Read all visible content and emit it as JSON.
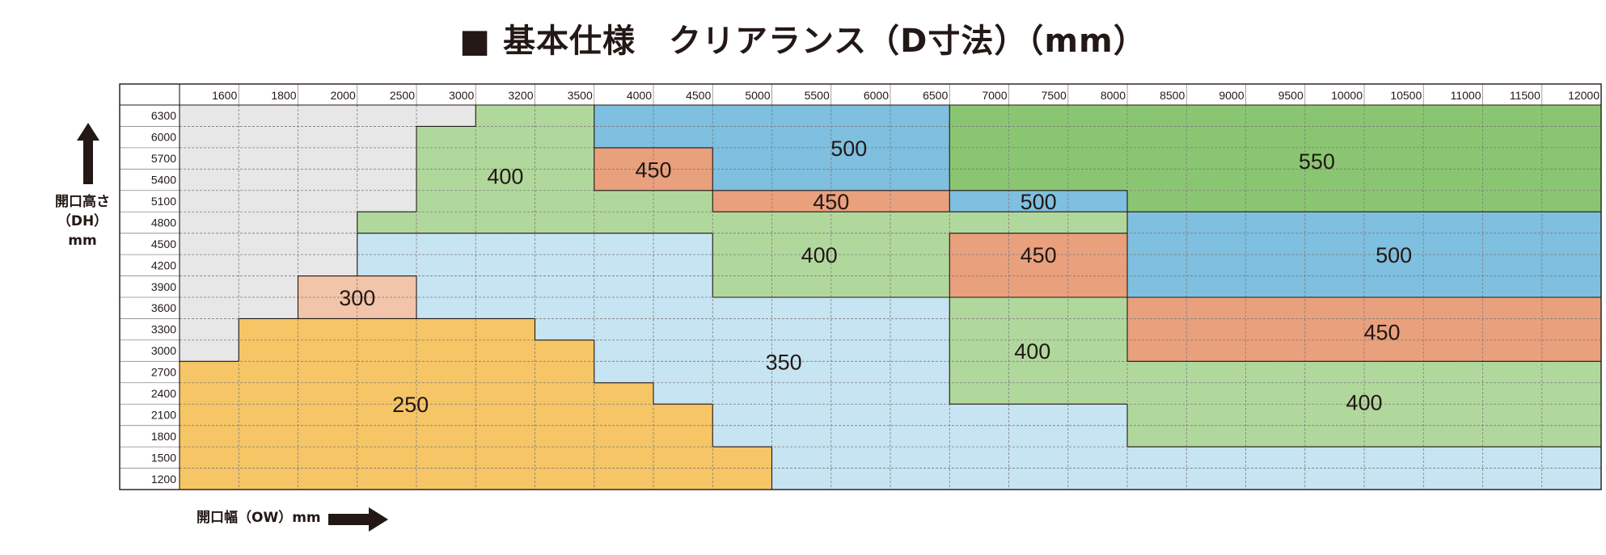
{
  "title": "■ 基本仕様　クリアランス（D寸法）（mm）",
  "y_axis_label": {
    "line1": "開口高さ",
    "line2": "（DH）mm"
  },
  "x_axis_label": "開口幅（OW）mm",
  "chart_data": {
    "type": "heatmap",
    "title": "■ 基本仕様　クリアランス（D寸法）（mm）",
    "xlabel": "開口幅（OW）mm",
    "ylabel": "開口高さ（DH）mm",
    "x_ticks": [
      "1600",
      "1800",
      "2000",
      "2500",
      "3000",
      "3200",
      "3500",
      "4000",
      "4500",
      "5000",
      "5500",
      "6000",
      "6500",
      "7000",
      "7500",
      "8000",
      "8500",
      "9000",
      "9500",
      "10000",
      "10500",
      "11000",
      "11500",
      "12000"
    ],
    "y_ticks": [
      "6300",
      "6000",
      "5700",
      "5400",
      "5100",
      "4800",
      "4500",
      "4200",
      "3900",
      "3600",
      "3300",
      "3000",
      "2700",
      "2400",
      "2100",
      "1800",
      "1500",
      "1200"
    ],
    "grid": true,
    "colors": {
      "none": "#e7e7e7",
      "250": "#f6c565",
      "300": "#f2c4aa",
      "350": "#c7e4f2",
      "400": "#b1d89c",
      "450": "#e9a07d",
      "500": "#7fbfdf",
      "550": "#8ac672"
    },
    "cells": [
      [
        null,
        null,
        null,
        null,
        null,
        "400",
        "400",
        "500",
        "500",
        "500",
        "500",
        "500",
        "500",
        "550",
        "550",
        "550",
        "550",
        "550",
        "550",
        "550",
        "550",
        "550",
        "550",
        "550"
      ],
      [
        null,
        null,
        null,
        null,
        "400",
        "400",
        "400",
        "500",
        "500",
        "500",
        "500",
        "500",
        "500",
        "550",
        "550",
        "550",
        "550",
        "550",
        "550",
        "550",
        "550",
        "550",
        "550",
        "550"
      ],
      [
        null,
        null,
        null,
        null,
        "400",
        "400",
        "400",
        "450",
        "450",
        "500",
        "500",
        "500",
        "500",
        "550",
        "550",
        "550",
        "550",
        "550",
        "550",
        "550",
        "550",
        "550",
        "550",
        "550"
      ],
      [
        null,
        null,
        null,
        null,
        "400",
        "400",
        "400",
        "450",
        "450",
        "500",
        "500",
        "500",
        "500",
        "550",
        "550",
        "550",
        "550",
        "550",
        "550",
        "550",
        "550",
        "550",
        "550",
        "550"
      ],
      [
        null,
        null,
        null,
        null,
        "400",
        "400",
        "400",
        "400",
        "400",
        "450",
        "450",
        "450",
        "450",
        "500",
        "500",
        "500",
        "550",
        "550",
        "550",
        "550",
        "550",
        "550",
        "550",
        "550"
      ],
      [
        null,
        null,
        null,
        "400",
        "400",
        "400",
        "400",
        "400",
        "400",
        "400",
        "400",
        "400",
        "400",
        "400",
        "400",
        "400",
        "500",
        "500",
        "500",
        "500",
        "500",
        "500",
        "500",
        "500"
      ],
      [
        null,
        null,
        null,
        "350",
        "350",
        "350",
        "350",
        "350",
        "350",
        "400",
        "400",
        "400",
        "400",
        "450",
        "450",
        "450",
        "500",
        "500",
        "500",
        "500",
        "500",
        "500",
        "500",
        "500"
      ],
      [
        null,
        null,
        null,
        "350",
        "350",
        "350",
        "350",
        "350",
        "350",
        "400",
        "400",
        "400",
        "400",
        "450",
        "450",
        "450",
        "500",
        "500",
        "500",
        "500",
        "500",
        "500",
        "500",
        "500"
      ],
      [
        null,
        null,
        "300",
        "300",
        "350",
        "350",
        "350",
        "350",
        "350",
        "400",
        "400",
        "400",
        "400",
        "450",
        "450",
        "450",
        "500",
        "500",
        "500",
        "500",
        "500",
        "500",
        "500",
        "500"
      ],
      [
        null,
        null,
        "300",
        "300",
        "350",
        "350",
        "350",
        "350",
        "350",
        "350",
        "350",
        "350",
        "350",
        "400",
        "400",
        "400",
        "450",
        "450",
        "450",
        "450",
        "450",
        "450",
        "450",
        "450"
      ],
      [
        null,
        "250",
        "250",
        "250",
        "250",
        "250",
        "350",
        "350",
        "350",
        "350",
        "350",
        "350",
        "350",
        "400",
        "400",
        "400",
        "450",
        "450",
        "450",
        "450",
        "450",
        "450",
        "450",
        "450"
      ],
      [
        null,
        "250",
        "250",
        "250",
        "250",
        "250",
        "250",
        "350",
        "350",
        "350",
        "350",
        "350",
        "350",
        "400",
        "400",
        "400",
        "450",
        "450",
        "450",
        "450",
        "450",
        "450",
        "450",
        "450"
      ],
      [
        "250",
        "250",
        "250",
        "250",
        "250",
        "250",
        "250",
        "350",
        "350",
        "350",
        "350",
        "350",
        "350",
        "400",
        "400",
        "400",
        "400",
        "400",
        "400",
        "400",
        "400",
        "400",
        "400",
        "400"
      ],
      [
        "250",
        "250",
        "250",
        "250",
        "250",
        "250",
        "250",
        "250",
        "350",
        "350",
        "350",
        "350",
        "350",
        "400",
        "400",
        "400",
        "400",
        "400",
        "400",
        "400",
        "400",
        "400",
        "400",
        "400"
      ],
      [
        "250",
        "250",
        "250",
        "250",
        "250",
        "250",
        "250",
        "250",
        "250",
        "350",
        "350",
        "350",
        "350",
        "350",
        "350",
        "350",
        "400",
        "400",
        "400",
        "400",
        "400",
        "400",
        "400",
        "400"
      ],
      [
        "250",
        "250",
        "250",
        "250",
        "250",
        "250",
        "250",
        "250",
        "250",
        "350",
        "350",
        "350",
        "350",
        "350",
        "350",
        "350",
        "400",
        "400",
        "400",
        "400",
        "400",
        "400",
        "400",
        "400"
      ],
      [
        "250",
        "250",
        "250",
        "250",
        "250",
        "250",
        "250",
        "250",
        "250",
        "250",
        "350",
        "350",
        "350",
        "350",
        "350",
        "350",
        "350",
        "350",
        "350",
        "350",
        "350",
        "350",
        "350",
        "350"
      ],
      [
        "250",
        "250",
        "250",
        "250",
        "250",
        "250",
        "250",
        "250",
        "250",
        "250",
        "350",
        "350",
        "350",
        "350",
        "350",
        "350",
        "350",
        "350",
        "350",
        "350",
        "350",
        "350",
        "350",
        "350"
      ]
    ],
    "zone_labels": [
      {
        "text": "400",
        "col": 5.5,
        "row": 3.3
      },
      {
        "text": "500",
        "col": 11.3,
        "row": 2.0
      },
      {
        "text": "450",
        "col": 8.0,
        "row": 3.0
      },
      {
        "text": "550",
        "col": 19.2,
        "row": 2.6
      },
      {
        "text": "450",
        "col": 11.0,
        "row": 4.5
      },
      {
        "text": "500",
        "col": 14.5,
        "row": 4.5
      },
      {
        "text": "400",
        "col": 10.8,
        "row": 7.0
      },
      {
        "text": "450",
        "col": 14.5,
        "row": 7.0
      },
      {
        "text": "500",
        "col": 20.5,
        "row": 7.0
      },
      {
        "text": "300",
        "col": 3.0,
        "row": 9.0
      },
      {
        "text": "450",
        "col": 20.3,
        "row": 10.6
      },
      {
        "text": "400",
        "col": 14.4,
        "row": 11.5
      },
      {
        "text": "350",
        "col": 10.2,
        "row": 12.0
      },
      {
        "text": "400",
        "col": 20.0,
        "row": 13.9
      },
      {
        "text": "250",
        "col": 3.9,
        "row": 14.0
      }
    ]
  }
}
